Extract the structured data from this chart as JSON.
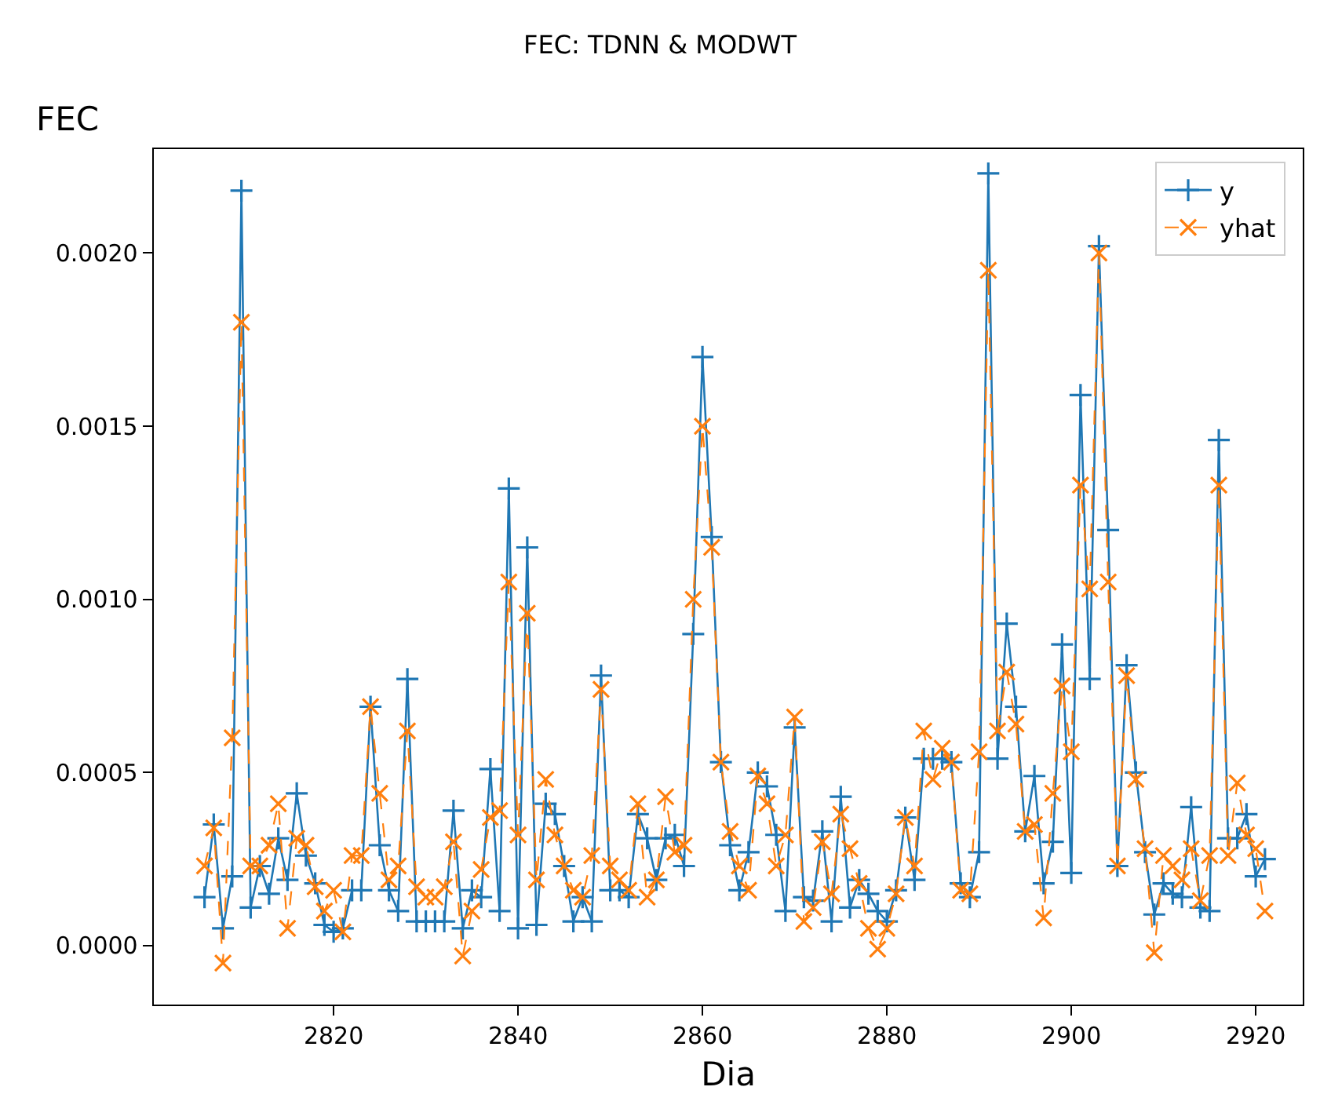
{
  "chart_data": {
    "type": "line",
    "title": "FEC: TDNN & MODWT",
    "xlabel": "Dia",
    "ylabel": "FEC",
    "x": [
      2806,
      2807,
      2808,
      2809,
      2810,
      2811,
      2812,
      2813,
      2814,
      2815,
      2816,
      2817,
      2818,
      2819,
      2820,
      2821,
      2822,
      2823,
      2824,
      2825,
      2826,
      2827,
      2828,
      2829,
      2830,
      2831,
      2832,
      2833,
      2834,
      2835,
      2836,
      2837,
      2838,
      2839,
      2840,
      2841,
      2842,
      2843,
      2844,
      2845,
      2846,
      2847,
      2848,
      2849,
      2850,
      2851,
      2852,
      2853,
      2854,
      2855,
      2856,
      2857,
      2858,
      2859,
      2860,
      2861,
      2862,
      2863,
      2864,
      2865,
      2866,
      2867,
      2868,
      2869,
      2870,
      2871,
      2872,
      2873,
      2874,
      2875,
      2876,
      2877,
      2878,
      2879,
      2880,
      2881,
      2882,
      2883,
      2884,
      2885,
      2886,
      2887,
      2888,
      2889,
      2890,
      2891,
      2892,
      2893,
      2894,
      2895,
      2896,
      2897,
      2898,
      2899,
      2900,
      2901,
      2902,
      2903,
      2904,
      2905,
      2906,
      2907,
      2908,
      2909,
      2910,
      2911,
      2912,
      2913,
      2914,
      2915,
      2916,
      2917,
      2918,
      2919,
      2920,
      2921
    ],
    "series": [
      {
        "name": "y",
        "color": "#1f77b4",
        "marker": "cross",
        "line_style": "solid",
        "values": [
          0.00014,
          0.00035,
          5e-05,
          0.0002,
          0.00218,
          0.00011,
          0.00023,
          0.00015,
          0.00031,
          0.00019,
          0.00044,
          0.00026,
          0.00018,
          6e-05,
          4e-05,
          5e-05,
          0.00016,
          0.00016,
          0.00069,
          0.00029,
          0.00016,
          0.0001,
          0.00077,
          7e-05,
          7e-05,
          7e-05,
          7e-05,
          0.00039,
          5e-05,
          0.00016,
          0.00014,
          0.00051,
          0.0001,
          0.00132,
          5e-05,
          0.00115,
          6e-05,
          0.00041,
          0.00038,
          0.00023,
          7e-05,
          0.00014,
          7e-05,
          0.00078,
          0.00016,
          0.00016,
          0.00014,
          0.00038,
          0.00031,
          0.00019,
          0.00031,
          0.00032,
          0.00023,
          0.0009,
          0.0017,
          0.00118,
          0.00053,
          0.00029,
          0.00016,
          0.00027,
          0.0005,
          0.00046,
          0.00032,
          0.0001,
          0.00063,
          0.00014,
          0.00013,
          0.00033,
          7e-05,
          0.00043,
          0.00011,
          0.00019,
          0.00015,
          0.0001,
          7e-05,
          0.00016,
          0.00037,
          0.00019,
          0.00054,
          0.00054,
          0.00054,
          0.00053,
          0.00018,
          0.00014,
          0.00027,
          0.00223,
          0.00054,
          0.00093,
          0.00069,
          0.00033,
          0.00049,
          0.00018,
          0.0003,
          0.00087,
          0.00021,
          0.00159,
          0.00077,
          0.00202,
          0.0012,
          0.00023,
          0.00081,
          0.0005,
          0.00027,
          9e-05,
          0.00018,
          0.00015,
          0.00014,
          0.0004,
          0.00011,
          0.0001,
          0.00146,
          0.00031,
          0.00031,
          0.00038,
          0.0002,
          0.00025
        ]
      },
      {
        "name": "yhat",
        "color": "#ff7f0e",
        "marker": "x",
        "line_style": "dashed",
        "values": [
          0.00023,
          0.00034,
          -5e-05,
          0.0006,
          0.0018,
          0.00023,
          0.00023,
          0.00029,
          0.00041,
          5e-05,
          0.00031,
          0.00029,
          0.00017,
          0.0001,
          0.00016,
          4e-05,
          0.00026,
          0.00026,
          0.00069,
          0.00044,
          0.00019,
          0.00023,
          0.00062,
          0.00017,
          0.00014,
          0.00014,
          0.00017,
          0.0003,
          -3e-05,
          0.0001,
          0.00022,
          0.00037,
          0.00039,
          0.00105,
          0.00032,
          0.00096,
          0.00019,
          0.00048,
          0.00032,
          0.00023,
          0.00016,
          0.00014,
          0.00026,
          0.00074,
          0.00023,
          0.00019,
          0.00016,
          0.00041,
          0.00014,
          0.00019,
          0.00043,
          0.00027,
          0.00029,
          0.001,
          0.0015,
          0.00115,
          0.00053,
          0.00033,
          0.00023,
          0.00016,
          0.00049,
          0.00041,
          0.00023,
          0.00032,
          0.00066,
          7e-05,
          0.00011,
          0.0003,
          0.00015,
          0.00038,
          0.00028,
          0.00018,
          5e-05,
          -1e-05,
          5e-05,
          0.00015,
          0.00037,
          0.00023,
          0.00062,
          0.00048,
          0.00057,
          0.00053,
          0.00016,
          0.00015,
          0.00056,
          0.00195,
          0.00062,
          0.00079,
          0.00064,
          0.00033,
          0.00035,
          8e-05,
          0.00044,
          0.00075,
          0.00056,
          0.00133,
          0.00103,
          0.002,
          0.00105,
          0.00023,
          0.00078,
          0.00048,
          0.00028,
          -2e-05,
          0.00026,
          0.00023,
          0.00019,
          0.00028,
          0.00013,
          0.00026,
          0.00133,
          0.00026,
          0.00047,
          0.00032,
          0.00028,
          0.0001
        ]
      }
    ],
    "xlim": [
      2800.5,
      2925.1
    ],
    "xticks": [
      2820,
      2840,
      2860,
      2880,
      2900,
      2920
    ],
    "ylim": [
      -0.00017,
      0.0023
    ],
    "yticks": [
      {
        "value": 0,
        "label": "0.0000"
      },
      {
        "value": 0.0005,
        "label": "0.0005"
      },
      {
        "value": 0.001,
        "label": "0.0010"
      },
      {
        "value": 0.0015,
        "label": "0.0015"
      },
      {
        "value": 0.002,
        "label": "0.0020"
      }
    ],
    "grid": false,
    "legend": "top right"
  }
}
